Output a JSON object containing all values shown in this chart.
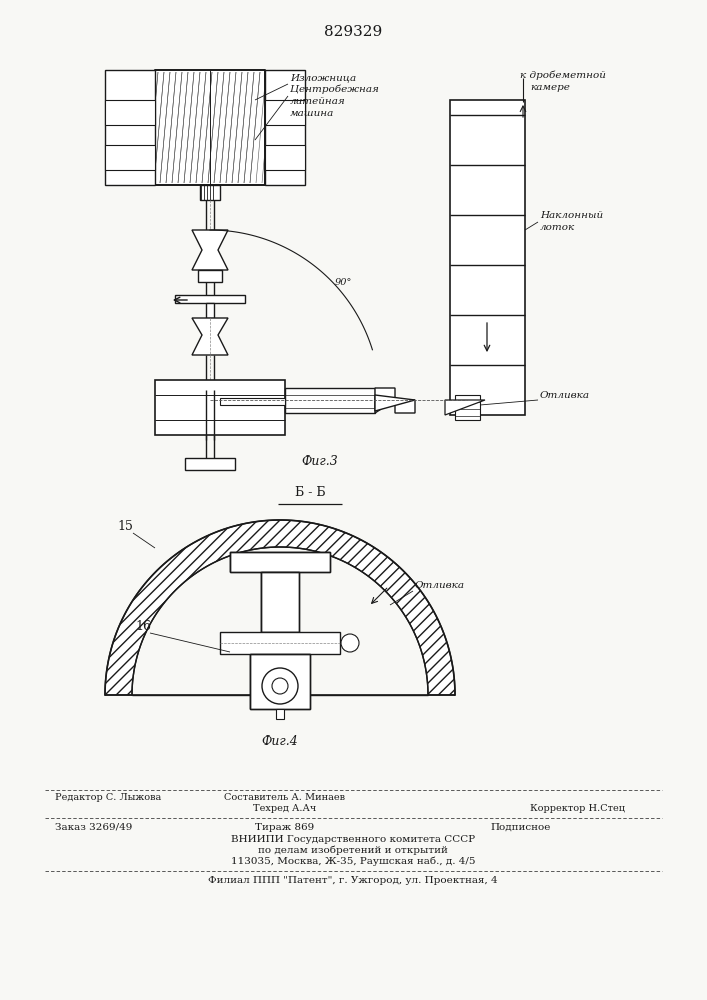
{
  "patent_number": "829329",
  "bg_color": "#f8f8f5",
  "line_color": "#1a1a1a",
  "fig3_label": "Фиг.3",
  "fig4_label": "Фиг.4",
  "section_label": "Б - Б",
  "annotations_fig3": {
    "izlognitsa": "Изложница",
    "centrobezhnaya": "Центробежная",
    "liteinaya": "литейная",
    "mashina": "машина",
    "k_drob": "к дробеметной",
    "kamere": "камере",
    "naklonny": "Наклонный",
    "lotok": "лоток",
    "otlivka": "Отливка",
    "angle": "90°"
  },
  "annotations_fig4": {
    "otlivka": "Отливка",
    "num15": "15",
    "num16": "16"
  },
  "footer": {
    "line1_left": "Редактор С. Лыжова",
    "line1_center": "Составитель А. Минаев",
    "line2_center": "Техред А.Ач",
    "line2_right": "Корректор Н.Стец",
    "line3_left": "Заказ 3269/49",
    "line3_center": "Тираж 869",
    "line3_right": "Подписное",
    "line4": "ВНИИПИ Государственного комитета СССР",
    "line5": "по делам изобретений и открытий",
    "line6": "113035, Москва, Ж-35, Раушская наб., д. 4/5",
    "line7": "Филиал ППП \"Патент\", г. Ужгород, ул. Проектная, 4"
  }
}
